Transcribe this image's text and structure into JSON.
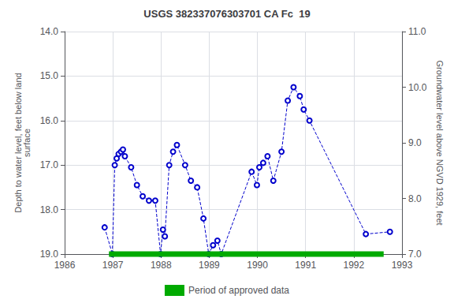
{
  "chart_data": {
    "type": "line",
    "title": "USGS 382337076303701 CA Fc  19",
    "x_label": null,
    "y_label": "Depth to water level, feet below land\nsurface",
    "y2_label": "Groundwater level above NGVD 1929, feet",
    "xlim": [
      1986.0,
      1993.0
    ],
    "xticks": [
      1986,
      1987,
      1988,
      1989,
      1990,
      1991,
      1992,
      1993
    ],
    "ylim": [
      19.0,
      14.0
    ],
    "yticks": [
      {
        "value": 14.0,
        "label": "14.0"
      },
      {
        "value": 15.0,
        "label": "15.0"
      },
      {
        "value": 16.0,
        "label": "16.0"
      },
      {
        "value": 17.0,
        "label": "17.0"
      },
      {
        "value": 18.0,
        "label": "18.0"
      },
      {
        "value": 19.0,
        "label": "19.0"
      }
    ],
    "y2lim": [
      7.0,
      11.0
    ],
    "y2ticks": [
      {
        "value": 11.0,
        "label": "11.0"
      },
      {
        "value": 10.0,
        "label": "10.0"
      },
      {
        "value": 9.0,
        "label": "9.0"
      },
      {
        "value": 8.0,
        "label": "8.0"
      },
      {
        "value": 7.0,
        "label": "7.0"
      }
    ],
    "grid": true,
    "legend": "bottom",
    "series": [
      {
        "color": "#0000cc",
        "marker": "circle",
        "line_style": "dashed",
        "x": [
          1986.83,
          1986.99,
          1987.04,
          1987.08,
          1987.12,
          1987.17,
          1987.21,
          1987.25,
          1987.38,
          1987.5,
          1987.62,
          1987.75,
          1987.88,
          1987.99,
          1988.04,
          1988.08,
          1988.17,
          1988.25,
          1988.33,
          1988.5,
          1988.62,
          1988.75,
          1988.88,
          1988.99,
          1989.08,
          1989.17,
          1989.25,
          1989.88,
          1989.99,
          1990.04,
          1990.12,
          1990.21,
          1990.33,
          1990.5,
          1990.63,
          1990.75,
          1990.88,
          1990.96,
          1991.08,
          1992.25,
          1992.75
        ],
        "values": [
          18.4,
          19.0,
          17.0,
          16.85,
          16.75,
          16.7,
          16.65,
          16.8,
          17.05,
          17.45,
          17.7,
          17.8,
          17.8,
          19.0,
          18.45,
          18.6,
          17.0,
          16.7,
          16.55,
          17.0,
          17.35,
          17.5,
          18.2,
          19.0,
          18.8,
          18.7,
          19.0,
          17.15,
          17.45,
          17.05,
          16.95,
          16.8,
          17.35,
          16.7,
          15.55,
          15.25,
          15.45,
          15.75,
          16.0,
          18.55,
          18.5
        ]
      },
      {
        "name": "Period of approved data",
        "color": "#00aa00",
        "marker": "none",
        "line_style": "solid",
        "x": [
          1986.92,
          1992.62
        ],
        "values": [
          19.0,
          19.0
        ]
      }
    ]
  }
}
